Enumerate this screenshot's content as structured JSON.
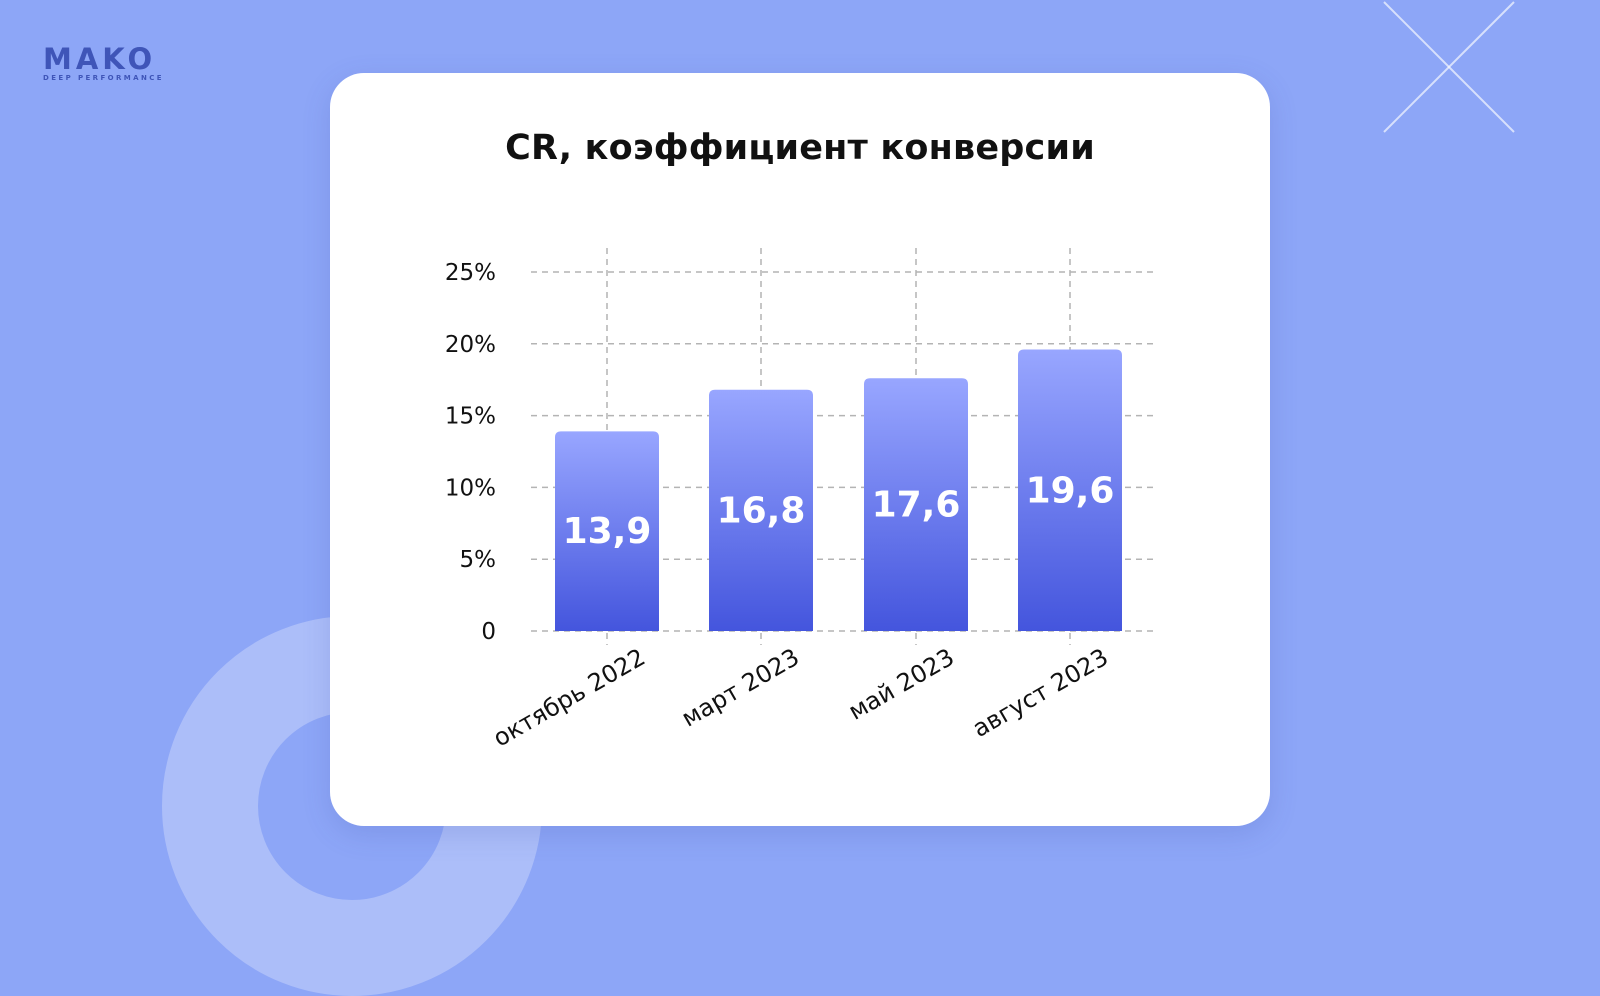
{
  "brand": {
    "logo_text": "MAKO",
    "logo_tagline": "DEEP PERFORMANCE"
  },
  "colors": {
    "background": "#8da6f7",
    "bar_top": "#98a6ff",
    "bar_bottom": "#4455dd",
    "text": "#111111",
    "value_text": "#ffffff"
  },
  "chart_data": {
    "type": "bar",
    "title": "CR, коэффициент конверсии",
    "xlabel": "",
    "ylabel": "",
    "categories": [
      "октябрь 2022",
      "март 2023",
      "май 2023",
      "август 2023"
    ],
    "values": [
      13.9,
      16.8,
      17.6,
      19.6
    ],
    "value_labels": [
      "13,9",
      "16,8",
      "17,6",
      "19,6"
    ],
    "ylim": [
      0,
      25
    ],
    "y_ticks": [
      0,
      5,
      10,
      15,
      20,
      25
    ],
    "y_tick_labels": [
      "0",
      "5%",
      "10%",
      "15%",
      "20%",
      "25%"
    ],
    "grid": true,
    "grid_style": "dashed"
  }
}
